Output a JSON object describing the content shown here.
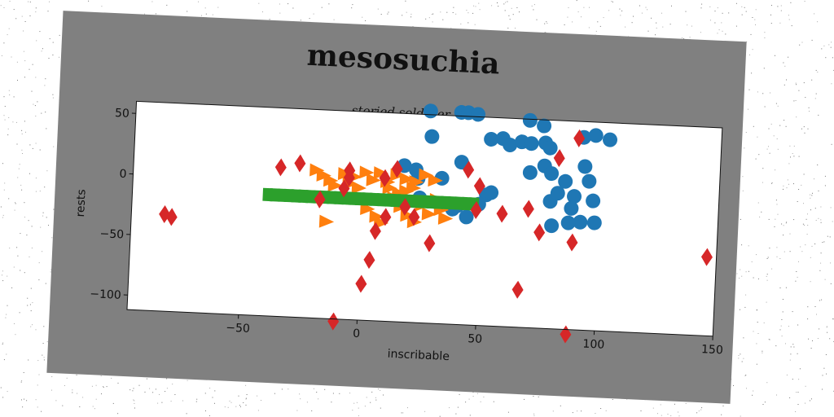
{
  "colors": {
    "figure_bg": "#808080",
    "plot_bg": "#ffffff",
    "series_blue": "#1f77b4",
    "series_orange": "#ff7f0e",
    "series_green": "#2ca02c",
    "series_red": "#d62728"
  },
  "chart_data": {
    "type": "scatter",
    "title": "mesosuchia",
    "subtitle": "storied solderer",
    "xlabel": "inscribable",
    "ylabel": "rests",
    "xlim": [
      -97,
      150
    ],
    "ylim": [
      -112,
      60
    ],
    "xticks": [
      -50,
      0,
      50,
      100,
      150
    ],
    "yticks": [
      -100,
      -50,
      0,
      50
    ],
    "grid": false,
    "legend": "none",
    "series": [
      {
        "marker": "circle",
        "color": "#1f77b4",
        "points": [
          [
            27,
            63
          ],
          [
            28,
            42
          ],
          [
            40,
            63
          ],
          [
            43,
            63
          ],
          [
            47,
            62
          ],
          [
            33,
            8
          ],
          [
            23,
            7
          ],
          [
            24,
            -9
          ],
          [
            16,
            -11
          ],
          [
            17,
            17
          ],
          [
            22,
            14
          ],
          [
            41,
            22
          ],
          [
            40,
            -14
          ],
          [
            52,
            -4
          ],
          [
            49,
            -12
          ],
          [
            54,
            -2
          ],
          [
            53,
            42
          ],
          [
            58,
            43
          ],
          [
            61,
            38
          ],
          [
            66,
            41
          ],
          [
            69,
            59
          ],
          [
            70,
            40
          ],
          [
            70,
            16
          ],
          [
            75,
            55
          ],
          [
            76,
            41
          ],
          [
            78,
            37
          ],
          [
            76,
            22
          ],
          [
            79,
            16
          ],
          [
            79,
            -7
          ],
          [
            85,
            10
          ],
          [
            82,
            0
          ],
          [
            89,
            -2
          ],
          [
            88,
            -12
          ],
          [
            92,
            -23
          ],
          [
            87,
            -24
          ],
          [
            93,
            23
          ],
          [
            95,
            11
          ],
          [
            97,
            -5
          ],
          [
            98,
            -23
          ],
          [
            92,
            47
          ],
          [
            97,
            49
          ],
          [
            103,
            46
          ],
          [
            80,
            -27
          ],
          [
            44,
            -23
          ],
          [
            38,
            -17
          ]
        ]
      },
      {
        "marker": "triangle-right",
        "color": "#ff7f0e",
        "points": [
          [
            -20,
            10
          ],
          [
            -17,
            6
          ],
          [
            -14,
            2
          ],
          [
            -12,
            -2
          ],
          [
            -8,
            8
          ],
          [
            -4,
            6
          ],
          [
            1,
            10
          ],
          [
            4,
            4
          ],
          [
            7,
            10
          ],
          [
            10,
            3
          ],
          [
            14,
            9
          ],
          [
            18,
            6
          ],
          [
            22,
            4
          ],
          [
            26,
            10
          ],
          [
            30,
            6
          ],
          [
            -15,
            -32
          ],
          [
            -4,
            -12
          ],
          [
            2,
            -20
          ],
          [
            6,
            -26
          ],
          [
            8,
            -31
          ],
          [
            13,
            -10
          ],
          [
            16,
            -17
          ],
          [
            19,
            -24
          ],
          [
            22,
            -29
          ],
          [
            25,
            -15
          ],
          [
            28,
            -22
          ],
          [
            31,
            -10
          ],
          [
            33,
            -18
          ],
          [
            35,
            -25
          ],
          [
            38,
            -13
          ],
          [
            11,
            -2
          ],
          [
            15,
            -6
          ],
          [
            18,
            -4
          ],
          [
            21,
            -1
          ],
          [
            -2,
            -3
          ],
          [
            -6,
            0
          ]
        ]
      },
      {
        "marker": "square",
        "color": "#2ca02c",
        "points": [
          [
            -40,
            -12
          ],
          [
            -37,
            -12
          ],
          [
            -34,
            -12
          ],
          [
            -31,
            -12
          ],
          [
            -28,
            -12
          ],
          [
            -25,
            -12
          ],
          [
            -22,
            -12
          ],
          [
            -19,
            -12
          ],
          [
            -16,
            -12
          ],
          [
            -13,
            -12
          ],
          [
            -10,
            -12
          ],
          [
            -7,
            -12
          ],
          [
            -4,
            -12
          ],
          [
            -1,
            -12
          ],
          [
            2,
            -12
          ],
          [
            5,
            -12
          ],
          [
            8,
            -12
          ],
          [
            11,
            -12
          ],
          [
            14,
            -12
          ],
          [
            17,
            -12
          ],
          [
            20,
            -12
          ],
          [
            23,
            -12
          ],
          [
            26,
            -12
          ],
          [
            29,
            -12
          ],
          [
            32,
            -12
          ],
          [
            35,
            -12
          ],
          [
            38,
            -12
          ],
          [
            41,
            -12
          ],
          [
            44,
            -12
          ],
          [
            47,
            -12
          ]
        ]
      },
      {
        "marker": "diamond",
        "color": "#d62728",
        "points": [
          [
            -83,
            -32
          ],
          [
            -80,
            -34
          ],
          [
            -35,
            11
          ],
          [
            -27,
            15
          ],
          [
            -18,
            -14
          ],
          [
            -8,
            -4
          ],
          [
            -6,
            11
          ],
          [
            -6,
            5
          ],
          [
            -10,
            -114
          ],
          [
            1,
            -82
          ],
          [
            4,
            -62
          ],
          [
            6,
            -38
          ],
          [
            9,
            6
          ],
          [
            10,
            -26
          ],
          [
            14,
            14
          ],
          [
            18,
            -17
          ],
          [
            22,
            -25
          ],
          [
            29,
            -46
          ],
          [
            44,
            16
          ],
          [
            49,
            3
          ],
          [
            48,
            -17
          ],
          [
            59,
            -19
          ],
          [
            67,
            -81
          ],
          [
            70,
            -14
          ],
          [
            75,
            -33
          ],
          [
            82,
            29
          ],
          [
            90,
            46
          ],
          [
            89,
            -40
          ],
          [
            88,
            -116
          ],
          [
            146,
            -47
          ]
        ]
      }
    ]
  }
}
